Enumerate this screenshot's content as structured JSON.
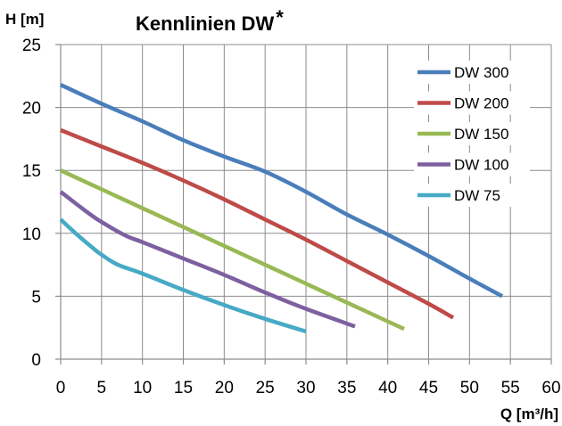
{
  "chart_data": {
    "type": "line",
    "title": "Kennlinien DW",
    "title_mark": "*",
    "xlabel": "Q [m³/h]",
    "ylabel": "H [m]",
    "xlim": [
      0,
      60
    ],
    "ylim": [
      0,
      25
    ],
    "xticks": [
      0,
      5,
      10,
      15,
      20,
      25,
      30,
      35,
      40,
      45,
      50,
      55,
      60
    ],
    "yticks": [
      0,
      5,
      10,
      15,
      20,
      25
    ],
    "grid": true,
    "legend_position": "top-right",
    "series": [
      {
        "name": "DW 300",
        "color": "#4a7ebb",
        "x": [
          0,
          5,
          10,
          15,
          20,
          25,
          30,
          35,
          40,
          45,
          50,
          54
        ],
        "y": [
          21.8,
          20.3,
          18.9,
          17.4,
          16.1,
          14.9,
          13.3,
          11.5,
          9.9,
          8.2,
          6.4,
          5.0
        ]
      },
      {
        "name": "DW 200",
        "color": "#be4b48",
        "x": [
          0,
          5,
          10,
          15,
          20,
          25,
          30,
          35,
          40,
          45,
          48
        ],
        "y": [
          18.2,
          16.9,
          15.6,
          14.2,
          12.7,
          11.1,
          9.5,
          7.8,
          6.1,
          4.4,
          3.3
        ]
      },
      {
        "name": "DW 150",
        "color": "#98b954",
        "x": [
          0,
          5,
          10,
          15,
          20,
          25,
          30,
          35,
          42
        ],
        "y": [
          15.0,
          13.5,
          12.0,
          10.5,
          9.0,
          7.5,
          6.0,
          4.5,
          2.4
        ]
      },
      {
        "name": "DW 100",
        "color": "#7d60a0",
        "x": [
          0,
          3,
          5,
          8,
          10,
          15,
          20,
          25,
          30,
          36
        ],
        "y": [
          13.3,
          11.8,
          10.9,
          9.8,
          9.3,
          8.0,
          6.7,
          5.3,
          4.0,
          2.6
        ]
      },
      {
        "name": "DW 75",
        "color": "#46aac5",
        "x": [
          0,
          2,
          4,
          5,
          7,
          10,
          15,
          20,
          25,
          30
        ],
        "y": [
          11.1,
          9.9,
          8.8,
          8.3,
          7.5,
          6.8,
          5.5,
          4.3,
          3.2,
          2.2
        ]
      }
    ]
  }
}
